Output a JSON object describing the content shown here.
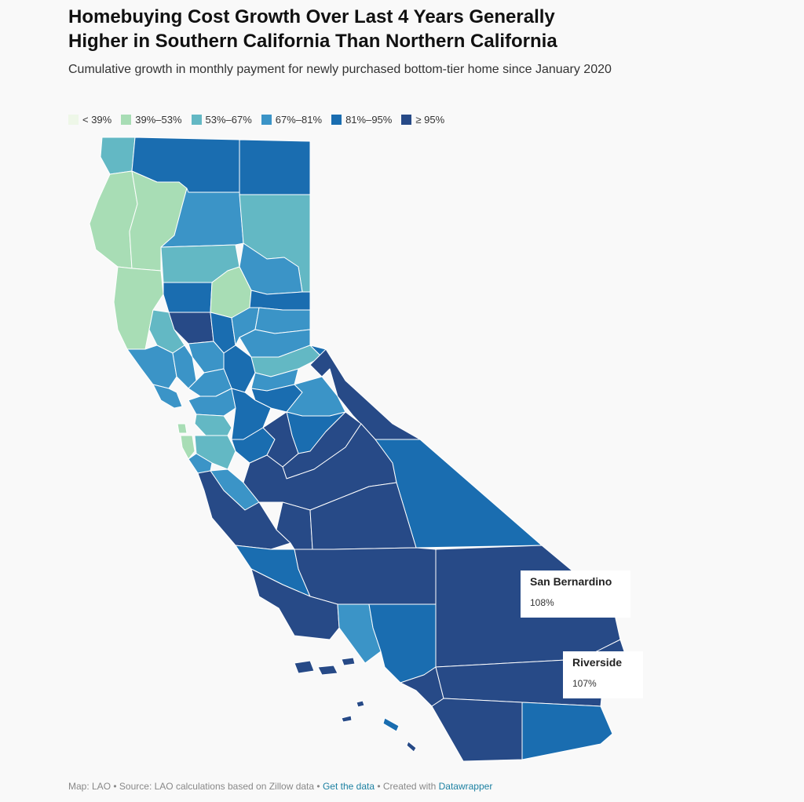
{
  "header": {
    "title": "Homebuying Cost Growth Over Last 4 Years Generally Higher in Southern California Than Northern California",
    "subtitle": "Cumulative growth in monthly payment for newly purchased bottom-tier home since January 2020"
  },
  "legend": [
    {
      "label": "< 39%",
      "color": "#eef7e8"
    },
    {
      "label": "39%–53%",
      "color": "#a8ddb5"
    },
    {
      "label": "53%–67%",
      "color": "#63b8c4"
    },
    {
      "label": "67%–81%",
      "color": "#3b94c7"
    },
    {
      "label": "81%–95%",
      "color": "#1a6db0"
    },
    {
      "label": "≥ 95%",
      "color": "#274a87"
    }
  ],
  "tooltips": [
    {
      "name": "San Bernardino",
      "value": "108%"
    },
    {
      "name": "Riverside",
      "value": "107%"
    }
  ],
  "footer": {
    "map_credit": "Map: LAO",
    "source": "Source: LAO calculations based on Zillow data",
    "get_data": "Get the data",
    "created_with": "Created with",
    "datawrapper": "Datawrapper",
    "sep": "•"
  }
}
